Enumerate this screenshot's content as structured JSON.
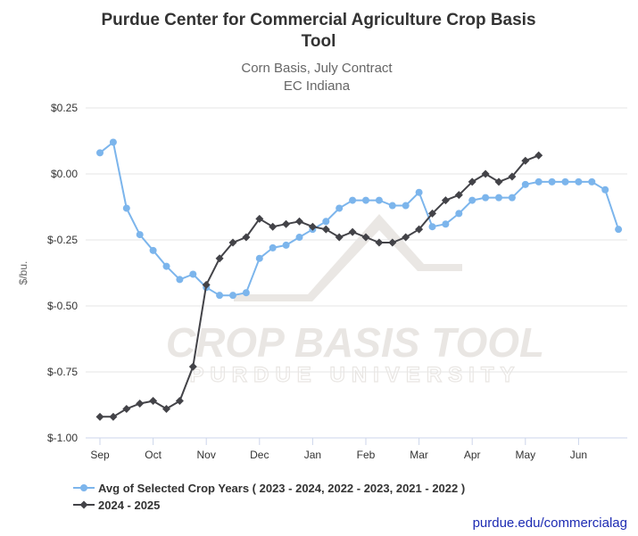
{
  "chart_data": {
    "type": "line",
    "title": "Purdue Center for Commercial Agriculture Crop Basis Tool",
    "title_lines": [
      "Purdue Center for Commercial Agriculture Crop Basis",
      "Tool"
    ],
    "subtitle_lines": [
      "Corn Basis, July Contract",
      "EC Indiana"
    ],
    "ylabel": "$/bu.",
    "ylim": [
      -1.0,
      0.25
    ],
    "yticks": [
      0.25,
      0.0,
      -0.25,
      -0.5,
      -0.75,
      -1.0
    ],
    "ytick_labels": [
      "$0.25",
      "$0.00",
      "$-0.25",
      "$-0.50",
      "$-0.75",
      "$-1.00"
    ],
    "xticks": [
      0,
      4,
      8,
      12,
      16,
      20,
      24,
      28,
      32,
      36
    ],
    "xtick_labels": [
      "Sep",
      "Oct",
      "Nov",
      "Dec",
      "Jan",
      "Feb",
      "Mar",
      "Apr",
      "May",
      "Jun"
    ],
    "xlim": [
      0,
      40
    ],
    "grid": "horizontal",
    "legend": "bottom-left",
    "watermark": {
      "main": "CROP BASIS TOOL",
      "sub": "PURDUE UNIVERSITY"
    },
    "credit": "purdue.edu/commercialag",
    "series": [
      {
        "name": "Avg of Selected Crop Years ( 2023 - 2024, 2022 - 2023, 2021 - 2022 )",
        "color": "#7cb5ec",
        "marker": "circle",
        "x": [
          0,
          1,
          2,
          3,
          4,
          5,
          6,
          7,
          8,
          9,
          10,
          11,
          12,
          13,
          14,
          15,
          16,
          17,
          18,
          19,
          20,
          21,
          22,
          23,
          24,
          25,
          26,
          27,
          28,
          29,
          30,
          31,
          32,
          33,
          34,
          35,
          36,
          37,
          38,
          39
        ],
        "values": [
          0.08,
          0.12,
          -0.13,
          -0.23,
          -0.29,
          -0.35,
          -0.4,
          -0.38,
          -0.43,
          -0.46,
          -0.46,
          -0.45,
          -0.32,
          -0.28,
          -0.27,
          -0.24,
          -0.21,
          -0.18,
          -0.13,
          -0.1,
          -0.1,
          -0.1,
          -0.12,
          -0.12,
          -0.07,
          -0.2,
          -0.19,
          -0.15,
          -0.1,
          -0.09,
          -0.09,
          -0.09,
          -0.04,
          -0.03,
          -0.03,
          -0.03,
          -0.03,
          -0.03,
          -0.06,
          -0.21
        ]
      },
      {
        "name": "2024 - 2025",
        "color": "#434348",
        "marker": "diamond",
        "x": [
          0,
          1,
          2,
          3,
          4,
          5,
          6,
          7,
          8,
          9,
          10,
          11,
          12,
          13,
          14,
          15,
          16,
          17,
          18,
          19,
          20,
          21,
          22,
          23,
          24,
          25,
          26,
          27,
          28,
          29,
          30,
          31,
          32,
          33
        ],
        "values": [
          -0.92,
          -0.92,
          -0.89,
          -0.87,
          -0.86,
          -0.89,
          -0.86,
          -0.73,
          -0.42,
          -0.32,
          -0.26,
          -0.24,
          -0.17,
          -0.2,
          -0.19,
          -0.18,
          -0.2,
          -0.21,
          -0.24,
          -0.22,
          -0.24,
          -0.26,
          -0.26,
          -0.24,
          -0.21,
          -0.15,
          -0.1,
          -0.08,
          -0.03,
          0.0,
          -0.03,
          -0.01,
          0.05,
          0.07
        ]
      }
    ]
  }
}
